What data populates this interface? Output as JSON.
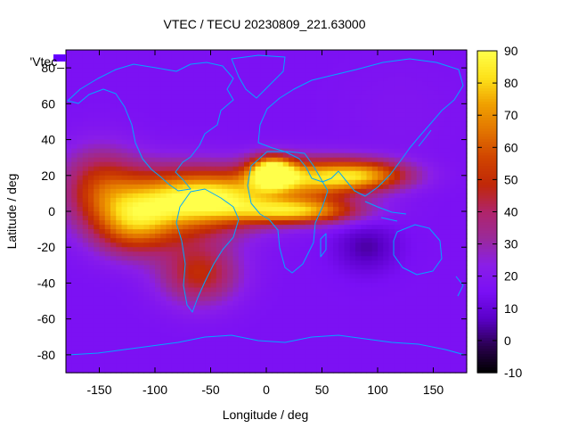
{
  "chart_data": {
    "type": "heatmap",
    "title": "VTEC / TECU 20230809_221.63000",
    "xlabel": "Longitude / deg",
    "ylabel": "Latitude / deg",
    "legend_key": "'Vtec_",
    "xlim": [
      -180,
      180
    ],
    "ylim": [
      -90,
      90
    ],
    "xticks": [
      -150,
      -100,
      -50,
      0,
      50,
      100,
      150
    ],
    "yticks": [
      -80,
      -60,
      -40,
      -20,
      0,
      20,
      40,
      60,
      80
    ],
    "colorbar": {
      "range": [
        -10,
        90
      ],
      "ticks": [
        -10,
        0,
        10,
        20,
        30,
        40,
        50,
        60,
        70,
        80,
        90
      ],
      "palette": [
        "#000000",
        "#2a0050",
        "#5a00c8",
        "#7a0ff5",
        "#8a1ee8",
        "#9a2a9a",
        "#b0246a",
        "#c02808",
        "#d04400",
        "#e27400",
        "#f0a000",
        "#fde21a",
        "#ffff4a"
      ]
    },
    "background_vtec": 16,
    "features": [
      {
        "lon": -85,
        "lat": 4,
        "peak": 52,
        "sigma_lon": 45,
        "sigma_lat": 14
      },
      {
        "lon": -120,
        "lat": -8,
        "peak": 40,
        "sigma_lon": 25,
        "sigma_lat": 12
      },
      {
        "lon": -40,
        "lat": 8,
        "peak": 50,
        "sigma_lon": 40,
        "sigma_lat": 10
      },
      {
        "lon": 5,
        "lat": 22,
        "peak": 72,
        "sigma_lon": 14,
        "sigma_lat": 6
      },
      {
        "lon": 40,
        "lat": 18,
        "peak": 55,
        "sigma_lon": 35,
        "sigma_lat": 8
      },
      {
        "lon": 30,
        "lat": 0,
        "peak": 60,
        "sigma_lon": 38,
        "sigma_lat": 5
      },
      {
        "lon": 90,
        "lat": 20,
        "peak": 50,
        "sigma_lon": 30,
        "sigma_lat": 6
      },
      {
        "lon": -60,
        "lat": -35,
        "peak": 38,
        "sigma_lon": 25,
        "sigma_lat": 12
      },
      {
        "lon": -150,
        "lat": 15,
        "peak": 34,
        "sigma_lon": 25,
        "sigma_lat": 15
      },
      {
        "lon": 90,
        "lat": -20,
        "peak": -6,
        "sigma_lon": 20,
        "sigma_lat": 10
      },
      {
        "lon": 120,
        "lat": 55,
        "peak": 8,
        "sigma_lon": 40,
        "sigma_lat": 20
      }
    ]
  }
}
